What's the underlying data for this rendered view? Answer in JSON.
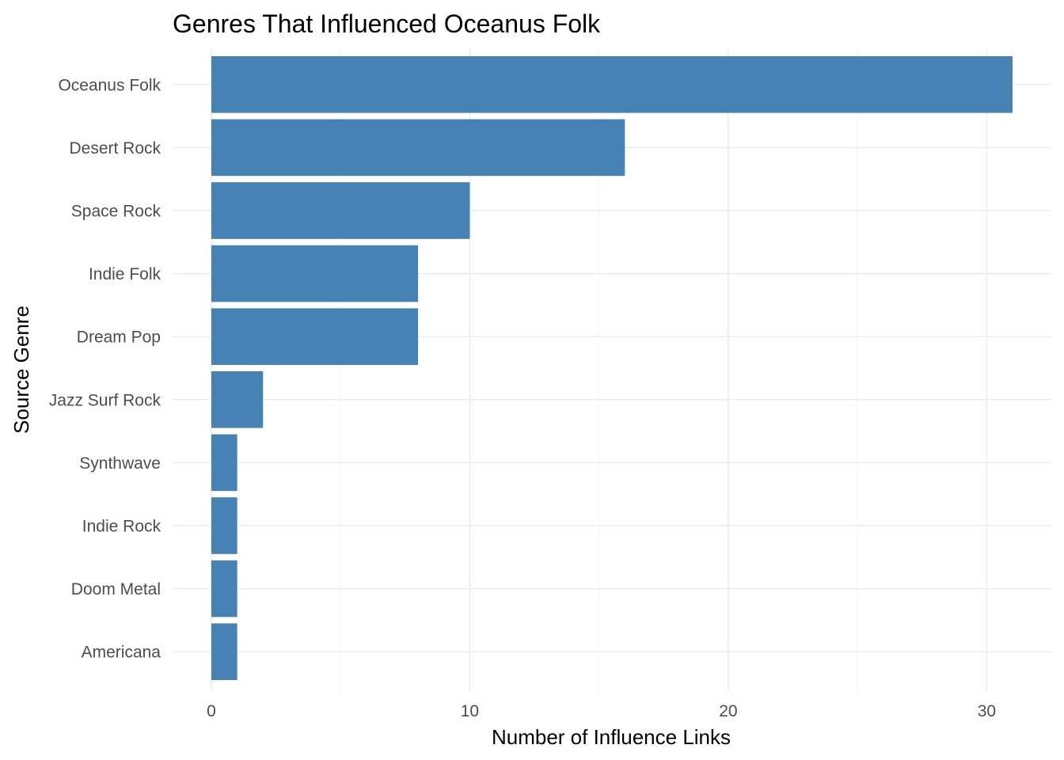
{
  "chart_data": {
    "type": "bar",
    "orientation": "horizontal",
    "title": "Genres That Influenced Oceanus Folk",
    "xlabel": "Number of Influence Links",
    "ylabel": "Source Genre",
    "categories": [
      "Oceanus Folk",
      "Desert Rock",
      "Space Rock",
      "Indie Folk",
      "Dream Pop",
      "Jazz Surf Rock",
      "Synthwave",
      "Indie Rock",
      "Doom Metal",
      "Americana"
    ],
    "values": [
      31,
      16,
      10,
      8,
      8,
      2,
      1,
      1,
      1,
      1
    ],
    "xlim": [
      -1.5,
      32.5
    ],
    "xticks": [
      0,
      10,
      20,
      30
    ],
    "grid": true,
    "bar_color": "#4682b4",
    "legend": "none"
  }
}
